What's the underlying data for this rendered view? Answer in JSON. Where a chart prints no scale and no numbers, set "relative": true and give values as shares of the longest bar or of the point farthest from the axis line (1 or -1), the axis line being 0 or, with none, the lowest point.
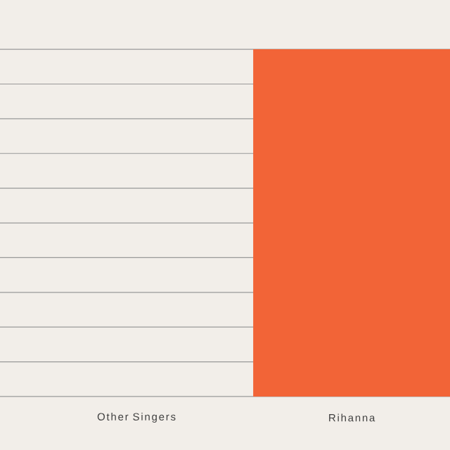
{
  "chart_data": {
    "type": "bar",
    "relative": true,
    "grid": "y",
    "categories": [
      "Other Singers",
      "Rihanna"
    ],
    "values": [
      0,
      1
    ],
    "color": "#f26437"
  }
}
